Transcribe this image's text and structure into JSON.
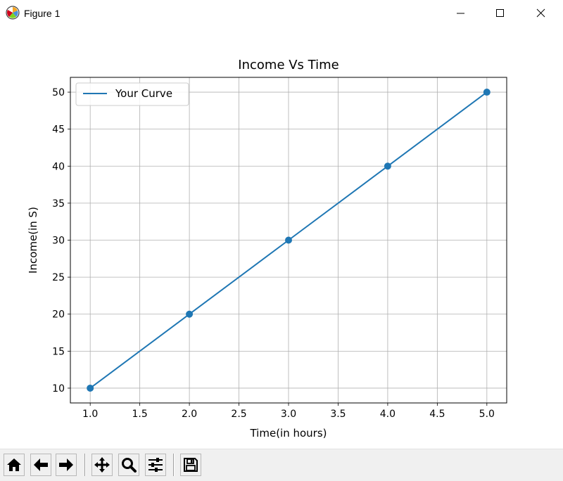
{
  "window": {
    "title": "Figure 1",
    "minimize_icon": "minimize-icon",
    "maximize_icon": "maximize-icon",
    "close_icon": "close-icon"
  },
  "toolbar": {
    "buttons": [
      {
        "name": "home",
        "icon": "home-icon"
      },
      {
        "name": "back",
        "icon": "arrow-left-icon"
      },
      {
        "name": "forward",
        "icon": "arrow-right-icon"
      },
      {
        "name": "pan",
        "icon": "move-icon"
      },
      {
        "name": "zoom",
        "icon": "magnifier-icon"
      },
      {
        "name": "configure-subplots",
        "icon": "sliders-icon"
      },
      {
        "name": "save",
        "icon": "floppy-disk-icon"
      }
    ]
  },
  "chart_data": {
    "type": "line",
    "title": "Income Vs Time",
    "xlabel": "Time(in hours)",
    "ylabel": "Income(in S)",
    "x": [
      1.0,
      2.0,
      3.0,
      4.0,
      5.0
    ],
    "series": [
      {
        "name": "Your Curve",
        "values": [
          10,
          20,
          30,
          40,
          50
        ],
        "color": "#1f77b4",
        "markers": true
      }
    ],
    "xlim": [
      0.8,
      5.2
    ],
    "ylim": [
      8,
      52
    ],
    "xticks": [
      "1.0",
      "1.5",
      "2.0",
      "2.5",
      "3.0",
      "3.5",
      "4.0",
      "4.5",
      "5.0"
    ],
    "yticks": [
      "10",
      "15",
      "20",
      "25",
      "30",
      "35",
      "40",
      "45",
      "50"
    ],
    "grid": true,
    "legend_position": "top-left"
  }
}
